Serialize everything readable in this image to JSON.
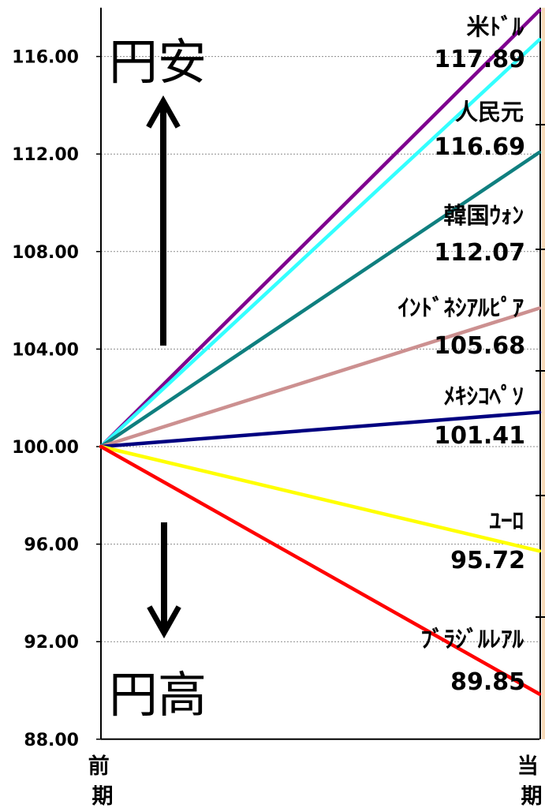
{
  "chart_data": {
    "type": "line",
    "categories": [
      "前期",
      "当期"
    ],
    "yticks": [
      "88.00",
      "92.00",
      "96.00",
      "100.00",
      "104.00",
      "108.00",
      "112.00",
      "116.00"
    ],
    "ylim": [
      88,
      118
    ],
    "grid": true,
    "series": [
      {
        "name": "米ﾄﾞﾙ",
        "values": [
          100,
          117.89
        ],
        "label": "117.89",
        "color": "#7f008f"
      },
      {
        "name": "人民元",
        "values": [
          100,
          116.69
        ],
        "label": "116.69",
        "color": "#33ffff"
      },
      {
        "name": "韓国ｳｫﾝ",
        "values": [
          100,
          112.07
        ],
        "label": "112.07",
        "color": "#0f7f7f"
      },
      {
        "name": "ｲﾝﾄﾞﾈｼｱﾙﾋﾟｱ",
        "values": [
          100,
          105.68
        ],
        "label": "105.68",
        "color": "#cc9090"
      },
      {
        "name": "ﾒｷｼｺﾍﾟｿ",
        "values": [
          100,
          101.41
        ],
        "label": "101.41",
        "color": "#000080"
      },
      {
        "name": "ﾕｰﾛ",
        "values": [
          100,
          95.72
        ],
        "label": "95.72",
        "color": "#ffff00"
      },
      {
        "name": "ﾌﾞﾗｼﾞﾙﾚｱﾙ",
        "values": [
          100,
          89.85
        ],
        "label": "89.85",
        "color": "#ff0000"
      }
    ],
    "annotations": {
      "weak_yen": "円安",
      "strong_yen": "円高"
    }
  }
}
